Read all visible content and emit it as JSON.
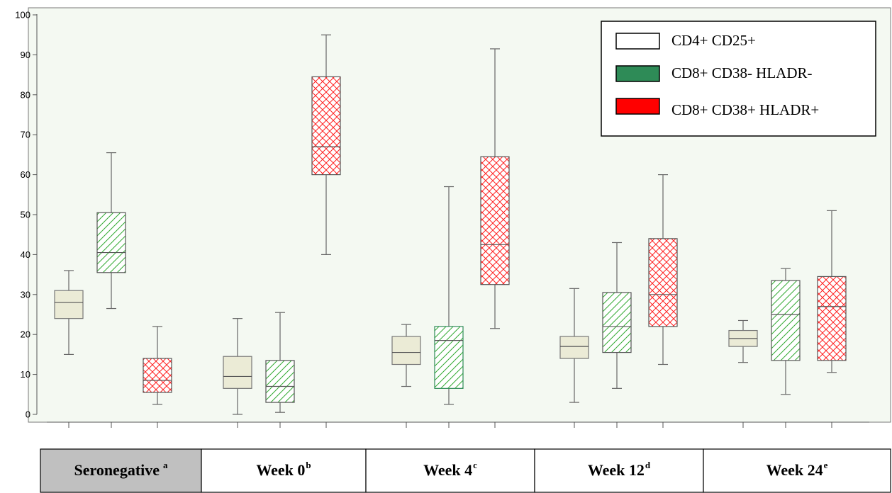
{
  "chart_data": {
    "type": "box",
    "ylim": [
      0,
      100
    ],
    "yticks": [
      "0",
      "10",
      "20",
      "30",
      "40",
      "50",
      "60",
      "70",
      "80",
      "90",
      "100"
    ],
    "grid": false,
    "legend_position": "top-right",
    "series": [
      {
        "name": "CD4+ CD25+",
        "color": "#ebebd6",
        "pattern": "solid"
      },
      {
        "name": "CD8+ CD38- HLADR-",
        "color": "#2e8b57",
        "pattern": "diagonal-hatch"
      },
      {
        "name": "CD8+ CD38+ HLADR+",
        "color": "#ff0000",
        "pattern": "cross-hatch"
      }
    ],
    "groups": [
      {
        "label": "Seronegative",
        "sup": "a",
        "shaded": true,
        "boxes": [
          {
            "series": "CD4+ CD25+",
            "min": 15,
            "q1": 24,
            "median": 28,
            "q3": 31,
            "max": 36
          },
          {
            "series": "CD8+ CD38- HLADR-",
            "min": 26.5,
            "q1": 35.5,
            "median": 40.5,
            "q3": 50.5,
            "max": 65.5
          },
          {
            "series": "CD8+ CD38+ HLADR+",
            "min": 2.5,
            "q1": 5.5,
            "median": 8.5,
            "q3": 14,
            "max": 22
          }
        ]
      },
      {
        "label": "Week 0",
        "sup": "b",
        "shaded": false,
        "boxes": [
          {
            "series": "CD4+ CD25+",
            "min": 0,
            "q1": 6.5,
            "median": 9.5,
            "q3": 14.5,
            "max": 24
          },
          {
            "series": "CD8+ CD38- HLADR-",
            "min": 0.5,
            "q1": 3,
            "median": 7,
            "q3": 13.5,
            "max": 25.5
          },
          {
            "series": "CD8+ CD38+ HLADR+",
            "min": 40,
            "q1": 60,
            "median": 67,
            "q3": 84.5,
            "max": 95
          }
        ]
      },
      {
        "label": "Week 4",
        "sup": "c",
        "shaded": false,
        "boxes": [
          {
            "series": "CD4+ CD25+",
            "min": 7,
            "q1": 12.5,
            "median": 15.5,
            "q3": 19.5,
            "max": 22.5
          },
          {
            "series": "CD8+ CD38- HLADR-",
            "min": 2.5,
            "q1": 6.5,
            "median": 18.5,
            "q3": 22,
            "max": 57
          },
          {
            "series": "CD8+ CD38+ HLADR+",
            "min": 21.5,
            "q1": 32.5,
            "median": 42.5,
            "q3": 64.5,
            "max": 91.5
          }
        ]
      },
      {
        "label": "Week 12",
        "sup": "d",
        "shaded": false,
        "boxes": [
          {
            "series": "CD4+ CD25+",
            "min": 3,
            "q1": 14,
            "median": 17,
            "q3": 19.5,
            "max": 31.5
          },
          {
            "series": "CD8+ CD38- HLADR-",
            "min": 6.5,
            "q1": 15.5,
            "median": 22,
            "q3": 30.5,
            "max": 43
          },
          {
            "series": "CD8+ CD38+ HLADR+",
            "min": 12.5,
            "q1": 22,
            "median": 30,
            "q3": 44,
            "max": 60
          }
        ]
      },
      {
        "label": "Week 24",
        "sup": "e",
        "shaded": false,
        "boxes": [
          {
            "series": "CD4+ CD25+",
            "min": 13,
            "q1": 17,
            "median": 19,
            "q3": 21,
            "max": 23.5
          },
          {
            "series": "CD8+ CD38- HLADR-",
            "min": 5,
            "q1": 13.5,
            "median": 25,
            "q3": 33.5,
            "max": 36.5
          },
          {
            "series": "CD8+ CD38+ HLADR+",
            "min": 10.5,
            "q1": 13.5,
            "median": 27,
            "q3": 34.5,
            "max": 51
          }
        ]
      }
    ]
  }
}
